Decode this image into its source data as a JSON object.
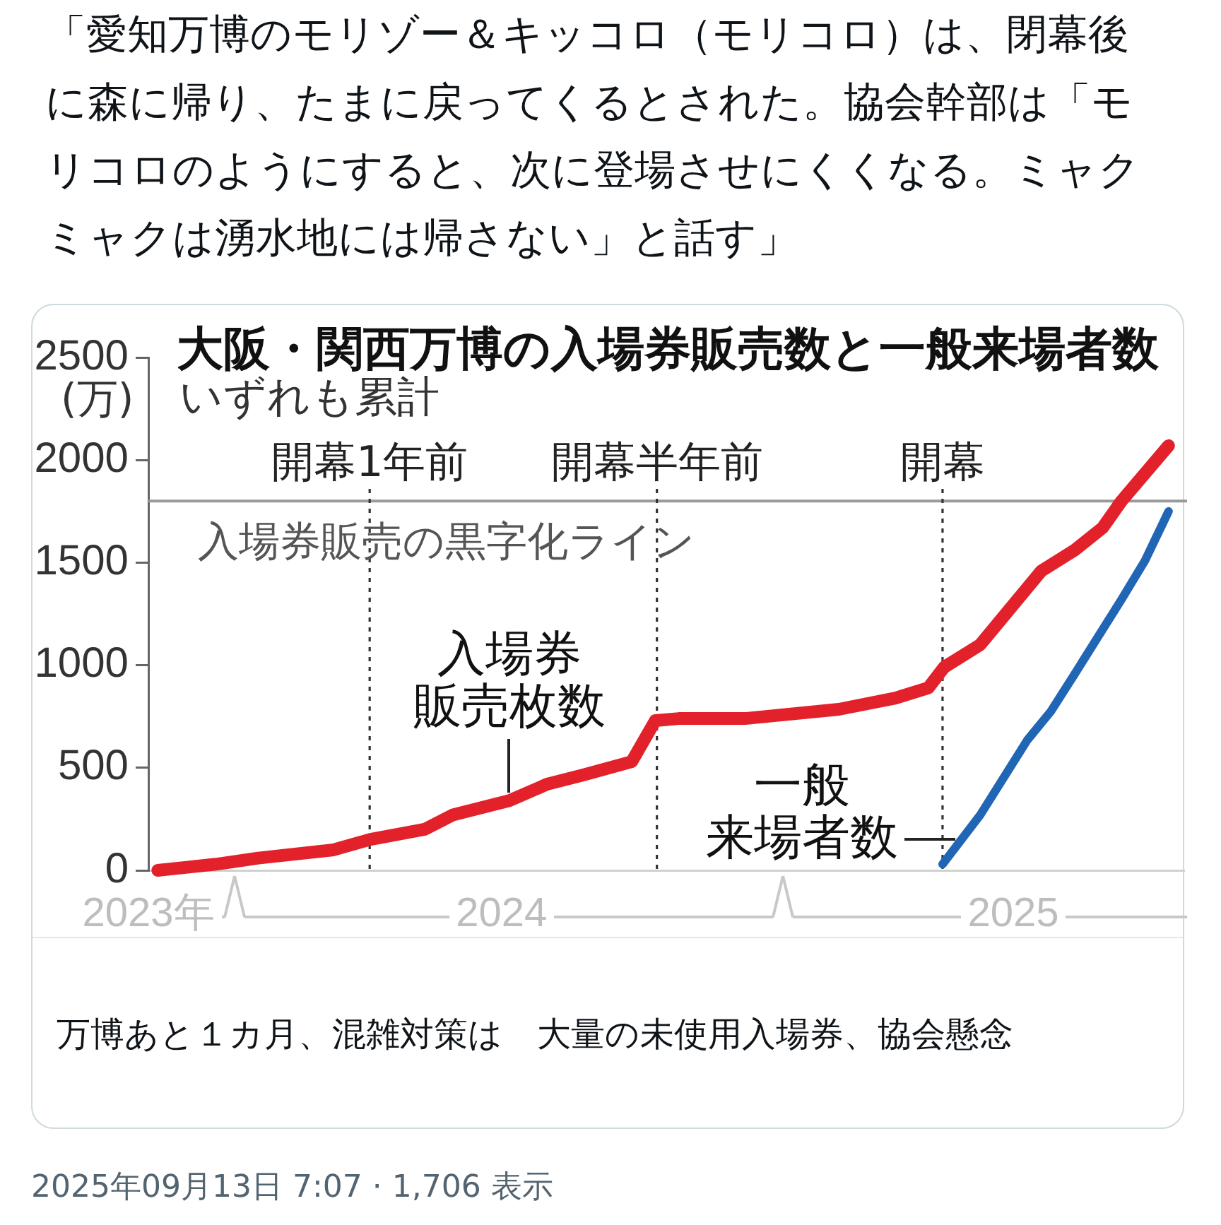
{
  "chart_data": {
    "type": "line",
    "title": "大阪・関西万博の入場券販売数と一般来場者数",
    "subtitle": "いずれも累計",
    "ylabel": "(万)",
    "xlim": [
      "2023-11-24",
      "2025-09-14"
    ],
    "xticks": [
      {
        "value": "2023-11-24",
        "label": "2023年"
      },
      {
        "value": "2024-07-06",
        "label": "2024"
      },
      {
        "value": "2025-05-28",
        "label": "2025"
      }
    ],
    "ylim": [
      0,
      2500
    ],
    "yticks": [
      0,
      500,
      1000,
      1500,
      2000,
      2500
    ],
    "marker": "none",
    "series": [
      {
        "name": "入場券販売枚数",
        "color": "#e3212b",
        "x": [
          "2023-11-30",
          "2024-01-06",
          "2024-02-02",
          "2024-03-21",
          "2024-04-13",
          "2024-05-18",
          "2024-06-05",
          "2024-07-11",
          "2024-08-04",
          "2024-08-27",
          "2024-09-27",
          "2024-10-12",
          "2024-10-27",
          "2024-12-08",
          "2025-02-06",
          "2025-03-14",
          "2025-04-04",
          "2025-04-14",
          "2025-05-07",
          "2025-06-15",
          "2025-07-06",
          "2025-07-24",
          "2025-08-05",
          "2025-09-04"
        ],
        "values": [
          0,
          30,
          60,
          100,
          150,
          200,
          270,
          340,
          420,
          465,
          530,
          730,
          740,
          740,
          785,
          840,
          890,
          990,
          1100,
          1460,
          1560,
          1670,
          1800,
          2070
        ]
      },
      {
        "name": "一般来場者数",
        "color": "#2166b5",
        "x": [
          "2025-04-13",
          "2025-05-07",
          "2025-06-06",
          "2025-06-21",
          "2025-07-06",
          "2025-08-05",
          "2025-08-20",
          "2025-09-04"
        ],
        "values": [
          30,
          270,
          635,
          775,
          955,
          1320,
          1510,
          1750
        ]
      }
    ],
    "ref_lines": [
      {
        "axis": "y",
        "value": 1800,
        "label": "入場券販売の黒字化ライン",
        "color": "#9a9a9a",
        "line_style": "solid"
      },
      {
        "axis": "x",
        "value": "2024-04-13",
        "label": "開幕1年前",
        "color": "#333333",
        "line_style": "dotted"
      },
      {
        "axis": "x",
        "value": "2024-10-13",
        "label": "開幕半年前",
        "color": "#333333",
        "line_style": "dotted"
      },
      {
        "axis": "x",
        "value": "2025-04-13",
        "label": "開幕",
        "color": "#333333",
        "line_style": "dotted"
      }
    ],
    "annotations": [
      "「愛知万博のモリゾー＆キッコロ（モリコロ）は、閉幕後に森に帰り、たまに戻ってくるとされた。協会幹部は「モリコロのようにすると、次に登場させにくくなる。ミャクミャクは湧水地には帰さない」と話す」",
      "万博あと１カ月、混雑対策は　大量の未使用入場券、協会懸念",
      "2025年09月13日 7:07 · 1,706 表示"
    ]
  }
}
